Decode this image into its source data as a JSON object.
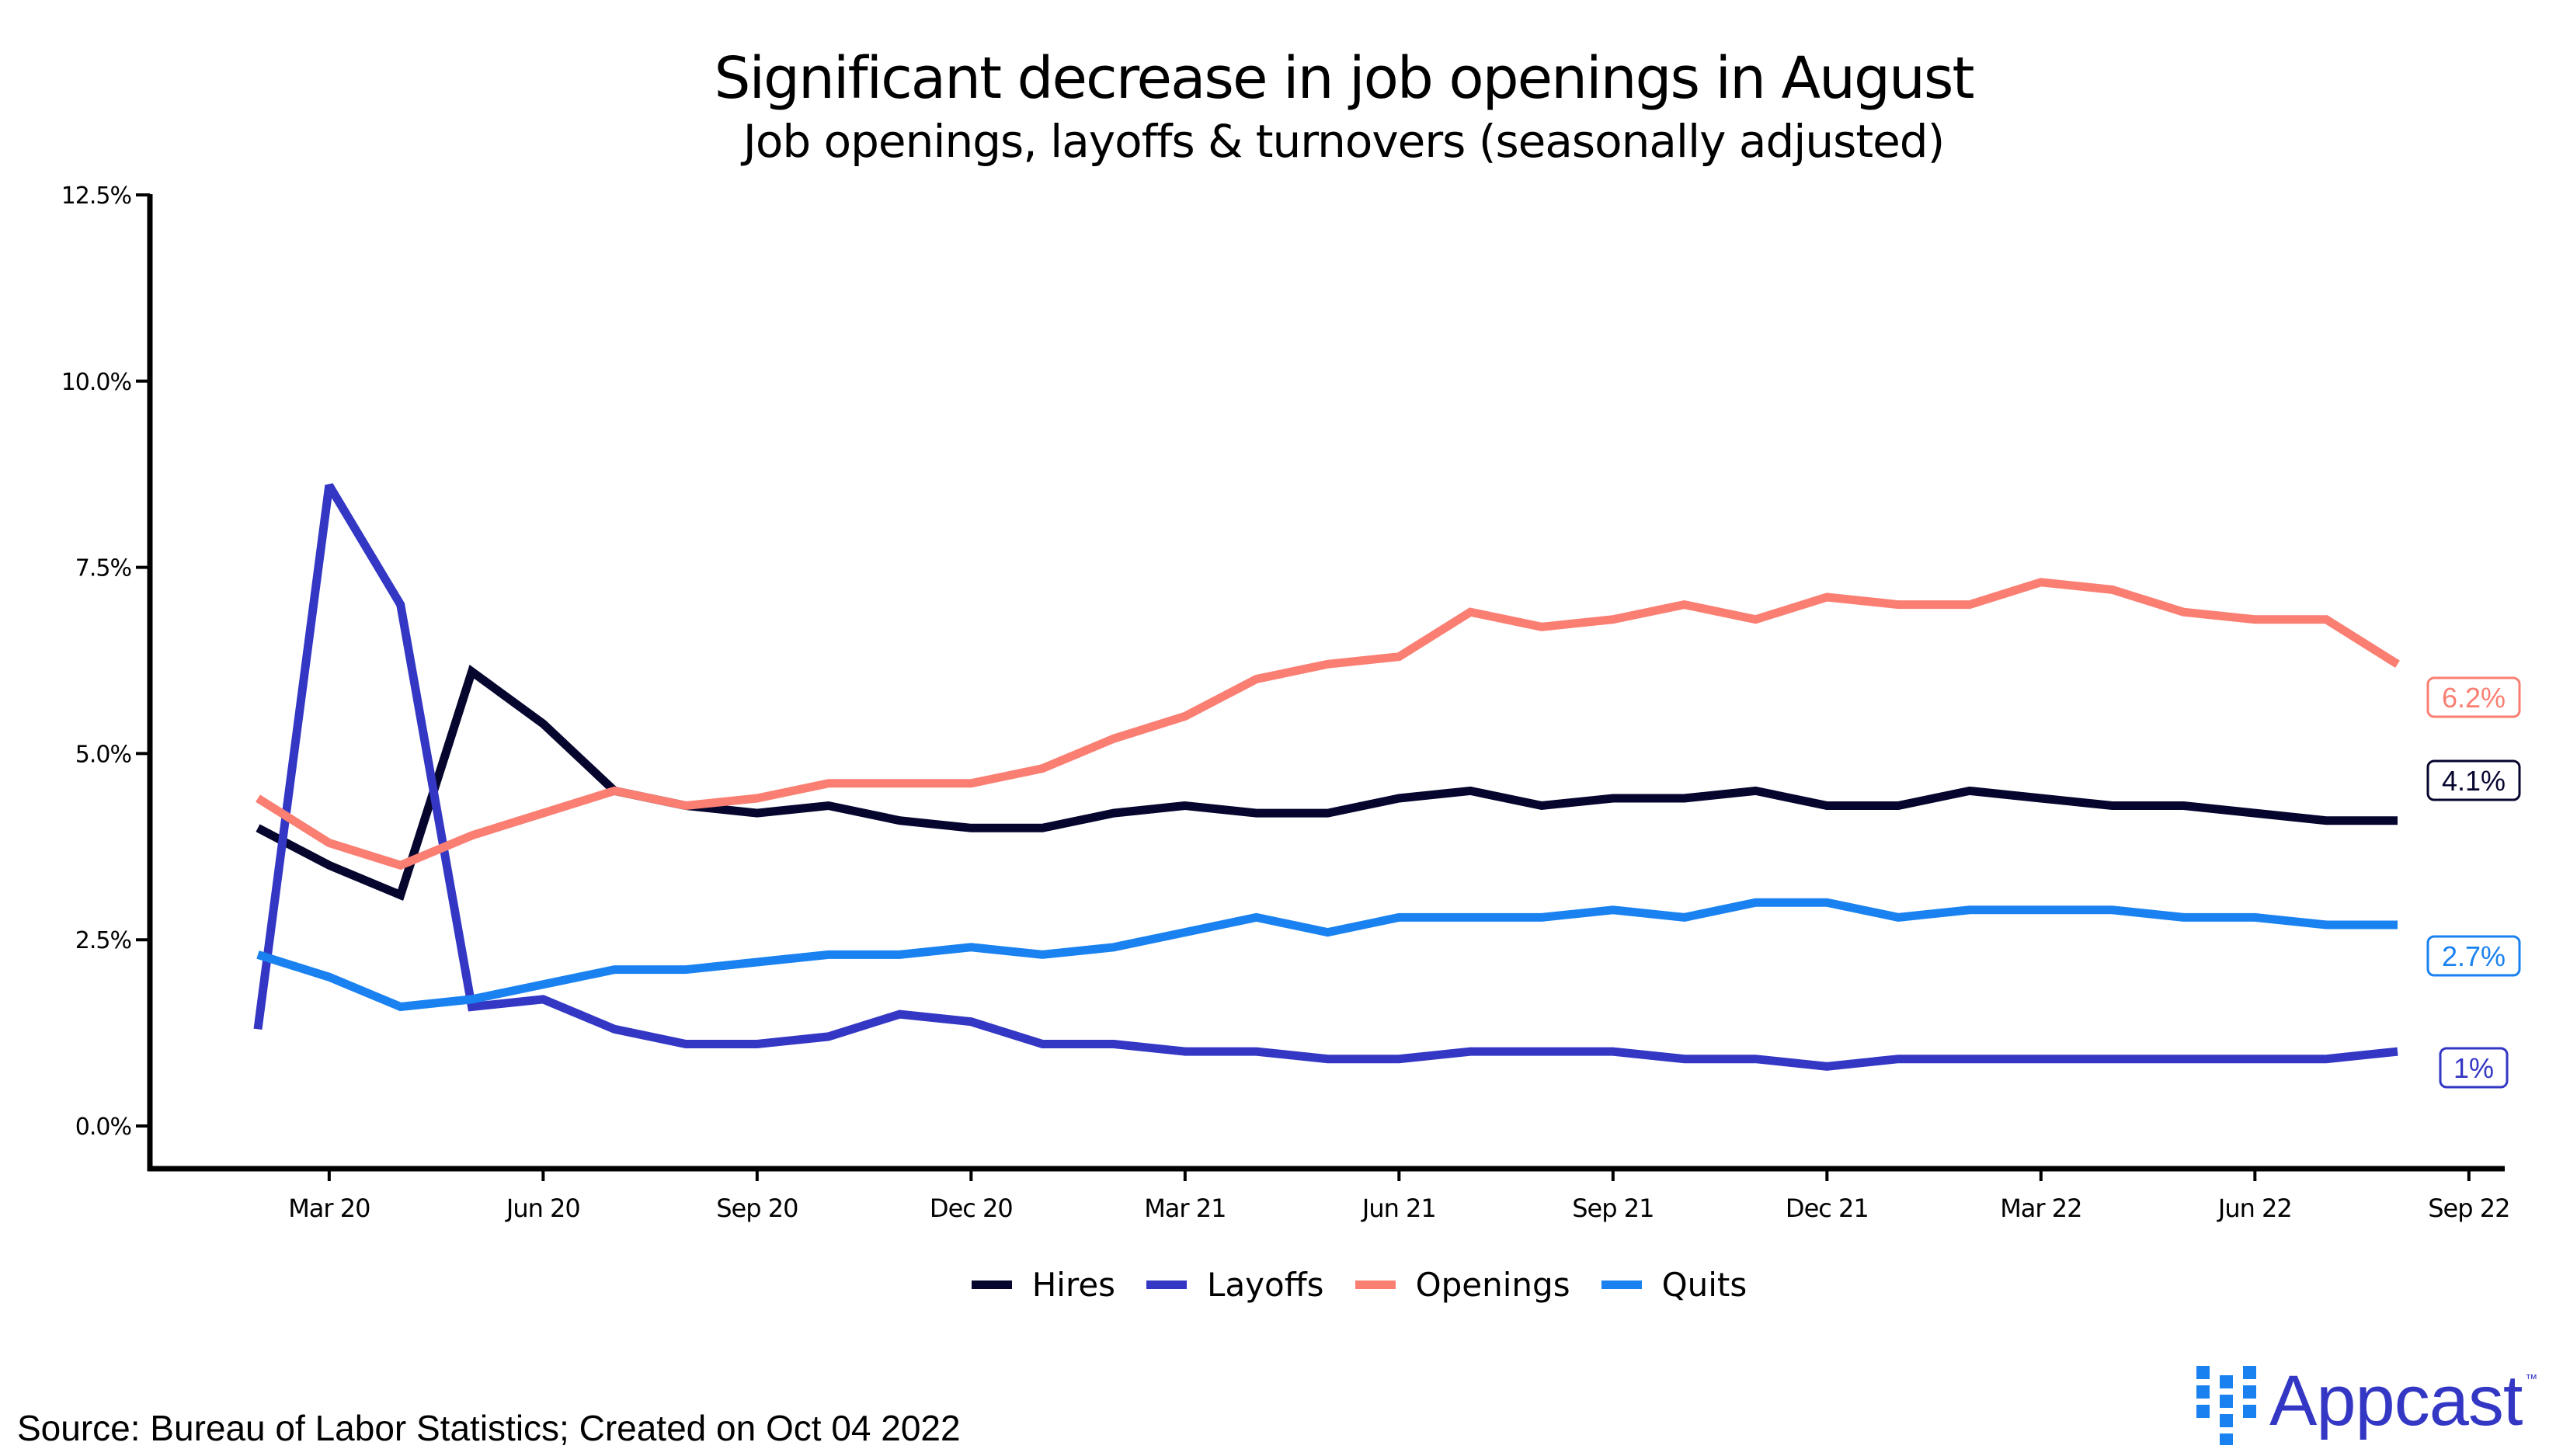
{
  "chart_data": {
    "type": "line",
    "title": "Significant decrease in job openings in August",
    "subtitle": "Job openings, layoffs & turnovers (seasonally adjusted)",
    "xlabel": "",
    "ylabel": "",
    "x": [
      "Feb 2020",
      "Mar 2020",
      "Apr 2020",
      "May 2020",
      "Jun 2020",
      "Jul 2020",
      "Aug 2020",
      "Sep 2020",
      "Oct 2020",
      "Nov 2020",
      "Dec 2020",
      "Jan 2021",
      "Feb 2021",
      "Mar 2021",
      "Apr 2021",
      "May 2021",
      "Jun 2021",
      "Jul 2021",
      "Aug 2021",
      "Sep 2021",
      "Oct 2021",
      "Nov 2021",
      "Dec 2021",
      "Jan 2022",
      "Feb 2022",
      "Mar 2022",
      "Apr 2022",
      "May 2022",
      "Jun 2022",
      "Jul 2022",
      "Aug 2022"
    ],
    "x_ticks": [
      {
        "label": "Mar 20",
        "index": 1
      },
      {
        "label": "Jun 20",
        "index": 4
      },
      {
        "label": "Sep 20",
        "index": 7
      },
      {
        "label": "Dec 20",
        "index": 10
      },
      {
        "label": "Mar 21",
        "index": 13
      },
      {
        "label": "Jun 21",
        "index": 16
      },
      {
        "label": "Sep 21",
        "index": 19
      },
      {
        "label": "Dec 21",
        "index": 22
      },
      {
        "label": "Mar 22",
        "index": 25
      },
      {
        "label": "Jun 22",
        "index": 28
      },
      {
        "label": "Sep 22",
        "index": 31
      }
    ],
    "y_ticks": [
      {
        "label": "0.0%",
        "value": 0
      },
      {
        "label": "2.5%",
        "value": 2.5
      },
      {
        "label": "5.0%",
        "value": 5
      },
      {
        "label": "7.5%",
        "value": 7.5
      },
      {
        "label": "10.0%",
        "value": 10
      },
      {
        "label": "12.5%",
        "value": 12.5
      }
    ],
    "ylim": [
      0,
      12.5
    ],
    "grid": false,
    "legend_position": "bottom-center",
    "series": [
      {
        "name": "Hires",
        "color": "#05052e",
        "end_label": "4.1%",
        "values": [
          4.0,
          3.5,
          3.1,
          6.1,
          5.4,
          4.5,
          4.3,
          4.2,
          4.3,
          4.1,
          4.0,
          4.0,
          4.2,
          4.3,
          4.2,
          4.2,
          4.4,
          4.5,
          4.3,
          4.4,
          4.4,
          4.5,
          4.3,
          4.3,
          4.5,
          4.4,
          4.3,
          4.3,
          4.2,
          4.1,
          4.1
        ]
      },
      {
        "name": "Layoffs",
        "color": "#3337c4",
        "end_label": "1%",
        "values": [
          1.3,
          8.6,
          7.0,
          1.6,
          1.7,
          1.3,
          1.1,
          1.1,
          1.2,
          1.5,
          1.4,
          1.1,
          1.1,
          1.0,
          1.0,
          0.9,
          0.9,
          1.0,
          1.0,
          1.0,
          0.9,
          0.9,
          0.8,
          0.9,
          0.9,
          0.9,
          0.9,
          0.9,
          0.9,
          0.9,
          1.0
        ]
      },
      {
        "name": "Openings",
        "color": "#fa7f72",
        "end_label": "6.2%",
        "values": [
          4.4,
          3.8,
          3.5,
          3.9,
          4.2,
          4.5,
          4.3,
          4.4,
          4.6,
          4.6,
          4.6,
          4.8,
          5.2,
          5.5,
          6.0,
          6.2,
          6.3,
          6.9,
          6.7,
          6.8,
          7.0,
          6.8,
          7.1,
          7.0,
          7.0,
          7.3,
          7.2,
          6.9,
          6.8,
          6.8,
          6.2
        ]
      },
      {
        "name": "Quits",
        "color": "#1a82f0",
        "end_label": "2.7%",
        "values": [
          2.3,
          2.0,
          1.6,
          1.7,
          1.9,
          2.1,
          2.1,
          2.2,
          2.3,
          2.3,
          2.4,
          2.3,
          2.4,
          2.6,
          2.8,
          2.6,
          2.8,
          2.8,
          2.8,
          2.9,
          2.8,
          3.0,
          3.0,
          2.8,
          2.9,
          2.9,
          2.9,
          2.8,
          2.8,
          2.7,
          2.7
        ]
      }
    ],
    "end_label_order": [
      "Openings",
      "Hires",
      "Quits",
      "Layoffs"
    ]
  },
  "footer": {
    "source": "Source: Bureau of Labor Statistics; Created on Oct 04 2022",
    "logo_text": "Appcast",
    "logo_tm": "™",
    "logo_color": "#3337c4",
    "logo_mark_color": "#1a82f0"
  }
}
